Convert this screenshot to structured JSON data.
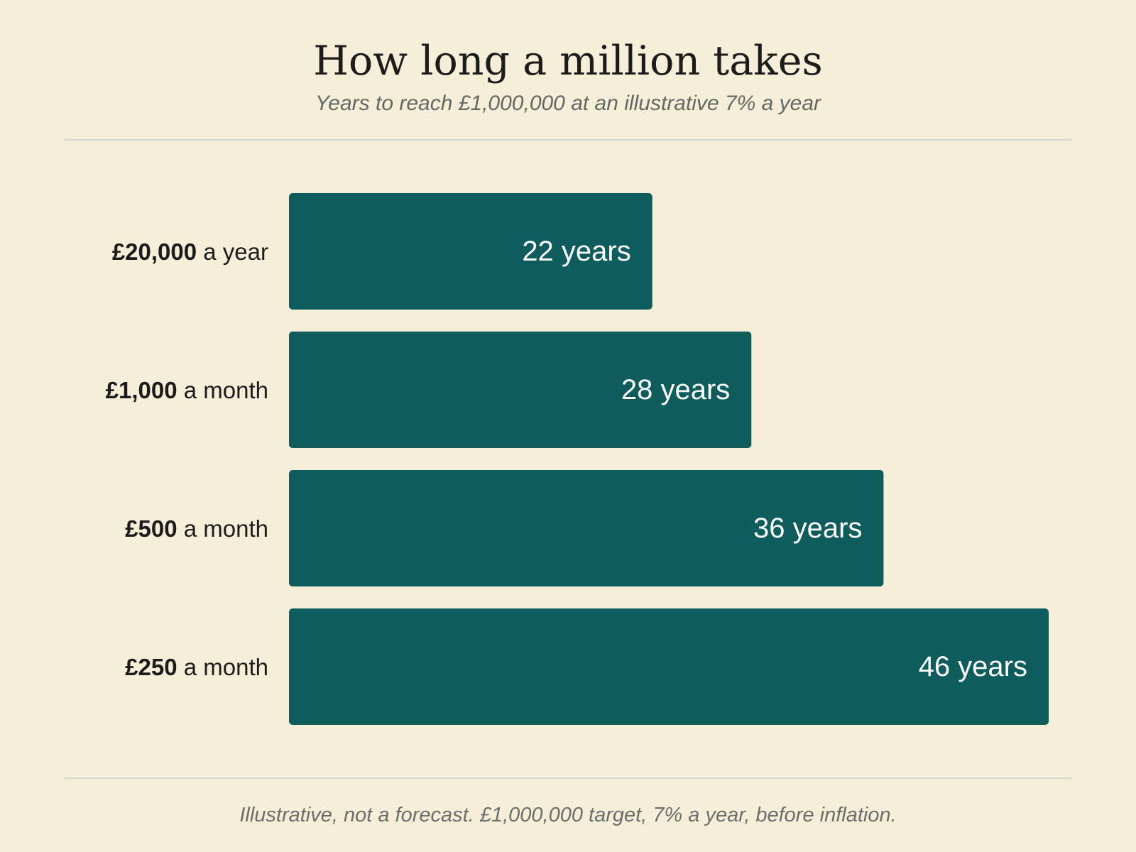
{
  "header": {
    "title": "How long a million takes",
    "subtitle": "Years to reach £1,000,000 at an illustrative 7% a year"
  },
  "footnote": "Illustrative, not a forecast. £1,000,000 target, 7% a year, before inflation.",
  "colors": {
    "background": "#f5eed8",
    "bar": "#0f5c5c",
    "bar_label": "#ffffff",
    "category_label": "#1c1c1c",
    "rule": "#d3d6d1"
  },
  "chart_data": {
    "type": "bar",
    "orientation": "horizontal",
    "title": "How long a million takes",
    "subtitle": "Years to reach £1,000,000 at an illustrative 7% a year",
    "categories": [
      {
        "amount": "£20,000",
        "period": "a year"
      },
      {
        "amount": "£1,000",
        "period": "a month"
      },
      {
        "amount": "£500",
        "period": "a month"
      },
      {
        "amount": "£250",
        "period": "a month"
      }
    ],
    "values": [
      22,
      28,
      36,
      46
    ],
    "value_labels": [
      "22 years",
      "28 years",
      "36 years",
      "46 years"
    ],
    "value_unit": "years",
    "xlim": [
      0,
      46
    ],
    "grid": false,
    "legend": "none"
  }
}
